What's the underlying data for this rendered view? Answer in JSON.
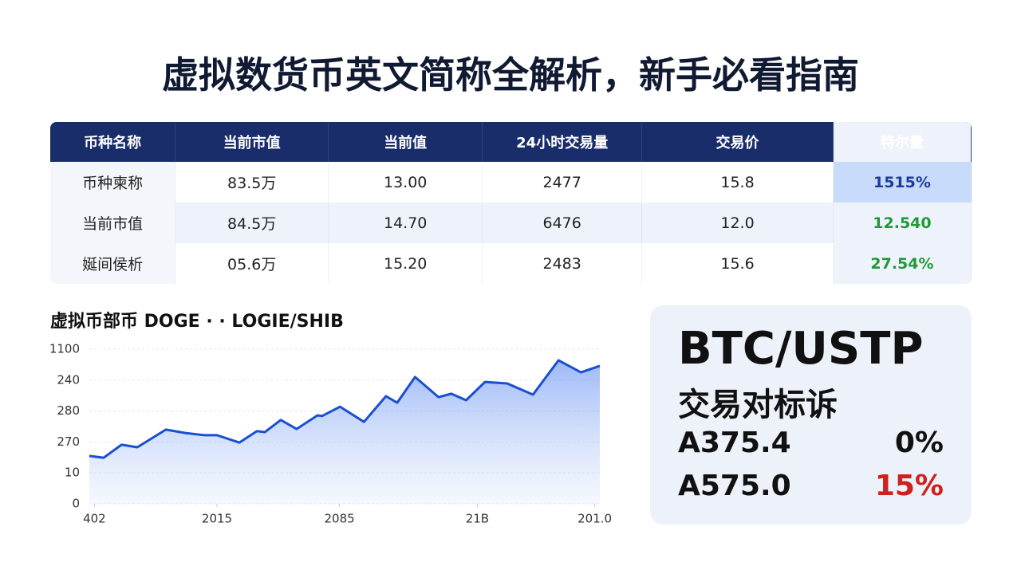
{
  "title": "虚拟数货币英文简称全解析，新手必看指南",
  "table": {
    "header": [
      "币种名称",
      "当前市值",
      "当前值",
      "24小时交易量",
      "交易价",
      "特尔量"
    ],
    "rows": [
      [
        "币种柬称",
        "83.5万",
        "13.00",
        "2477",
        "15.8",
        "1515%"
      ],
      [
        "当前市值",
        "84.5万",
        "14.70",
        "6476",
        "12.0",
        "12.540"
      ],
      [
        "娫间侯析",
        "05.6万",
        "15.20",
        "2483",
        "15.6",
        "27.54%"
      ]
    ]
  },
  "chart_data": {
    "type": "area",
    "title": "虚拟币部币 DOGE · · LOGIE/SHIB",
    "color": "#1a4fd1",
    "grid": true,
    "x": [
      0,
      2.8,
      6.3,
      9.4,
      15,
      18.8,
      22.5,
      25,
      29.4,
      32.8,
      34.4,
      37.5,
      40.6,
      44.7,
      45.6,
      49.1,
      53.8,
      58.1,
      60.3,
      63.8,
      68.4,
      70.9,
      73.8,
      77.5,
      81.9,
      86.9,
      91.9,
      96.3,
      100
    ],
    "values": [
      1.55,
      1.49,
      1.91,
      1.83,
      2.4,
      2.29,
      2.22,
      2.22,
      1.98,
      2.35,
      2.32,
      2.71,
      2.42,
      2.86,
      2.84,
      3.14,
      2.65,
      3.48,
      3.27,
      4.1,
      3.45,
      3.56,
      3.35,
      3.94,
      3.89,
      3.53,
      4.64,
      4.25,
      4.46
    ],
    "xlim": [
      0,
      100
    ],
    "ylim": [
      0,
      5
    ],
    "xticks": [
      {
        "value": 1,
        "label": "402"
      },
      {
        "value": 25,
        "label": "2015"
      },
      {
        "value": 49,
        "label": "2085"
      },
      {
        "value": 76,
        "label": "21B"
      },
      {
        "value": 99,
        "label": "201.0"
      }
    ],
    "yticks": [
      {
        "value": 0,
        "label": "0"
      },
      {
        "value": 1,
        "label": "10"
      },
      {
        "value": 2,
        "label": "270"
      },
      {
        "value": 3,
        "label": "280"
      },
      {
        "value": 4,
        "label": "240"
      },
      {
        "value": 5,
        "label": "1100"
      }
    ]
  },
  "card": {
    "title": "BTC/USTP",
    "subtitle": "交易对标诉",
    "rows": [
      {
        "name": "A375.4",
        "value": "0%",
        "color": "#111111"
      },
      {
        "name": "A575.0",
        "value": "15%",
        "color": "#d0201c"
      }
    ]
  }
}
